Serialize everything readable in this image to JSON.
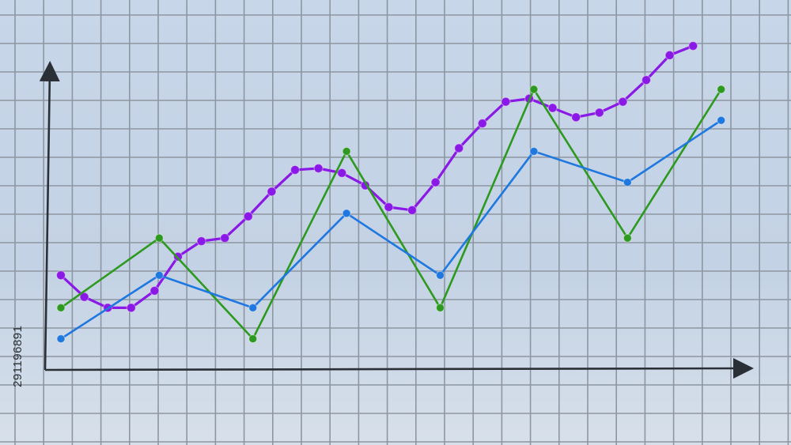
{
  "stock_id": "291196891",
  "colors": {
    "background": "#c7d6e8",
    "grid": "#8e96a2",
    "axes": "#2b2f36"
  },
  "chart_data": {
    "type": "line",
    "title": "",
    "xlabel": "",
    "ylabel": "",
    "grid": true,
    "xlim": [
      0,
      28
    ],
    "ylim": [
      0,
      10
    ],
    "series": [
      {
        "color": "#8a18e6",
        "points": [
          [
            0,
            2.8
          ],
          [
            1,
            2.1
          ],
          [
            2,
            1.75
          ],
          [
            3,
            1.75
          ],
          [
            4,
            2.3
          ],
          [
            5,
            3.4
          ],
          [
            6,
            3.9
          ],
          [
            7,
            4.0
          ],
          [
            8,
            4.7
          ],
          [
            9,
            5.5
          ],
          [
            10,
            6.2
          ],
          [
            11,
            6.25
          ],
          [
            12,
            6.1
          ],
          [
            13,
            5.7
          ],
          [
            14,
            5.0
          ],
          [
            15,
            4.9
          ],
          [
            16,
            5.8
          ],
          [
            17,
            6.9
          ],
          [
            18,
            7.7
          ],
          [
            19,
            8.4
          ],
          [
            20,
            8.5
          ],
          [
            21,
            8.2
          ],
          [
            22,
            7.9
          ],
          [
            23,
            8.05
          ],
          [
            24,
            8.4
          ],
          [
            25,
            9.1
          ],
          [
            26,
            9.9
          ],
          [
            27,
            10.2
          ]
        ]
      },
      {
        "color": "#2d9a1f",
        "points": [
          [
            0,
            1.75
          ],
          [
            4.2,
            4.0
          ],
          [
            8.2,
            0.75
          ],
          [
            12.2,
            6.8
          ],
          [
            16.2,
            1.75
          ],
          [
            20.2,
            8.8
          ],
          [
            24.2,
            4.0
          ],
          [
            28.2,
            8.8
          ]
        ]
      },
      {
        "color": "#1f78e0",
        "points": [
          [
            0,
            0.75
          ],
          [
            4.2,
            2.8
          ],
          [
            8.2,
            1.75
          ],
          [
            12.2,
            4.8
          ],
          [
            16.2,
            2.8
          ],
          [
            20.2,
            6.8
          ],
          [
            24.2,
            5.8
          ],
          [
            28.2,
            7.8
          ]
        ]
      }
    ]
  }
}
